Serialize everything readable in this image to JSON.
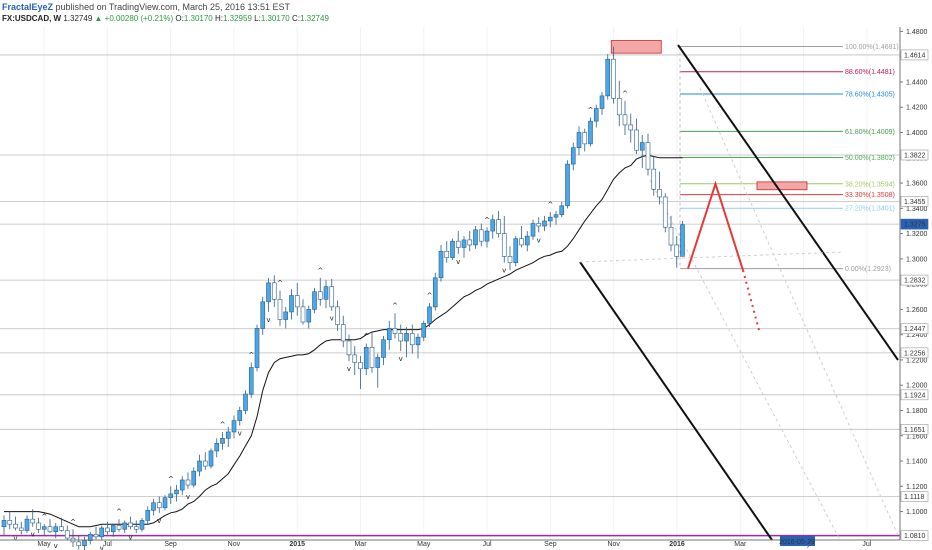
{
  "header": {
    "author": "FractalEyeZ",
    "published": "published on TradingView.com, March 25, 2016 13:51 EST"
  },
  "symbol_bar": {
    "symbol": "FX:USDCAD, W",
    "price": "1.32749",
    "change": "▲ +0.00280 (+0.21%)",
    "o_label": "O:",
    "o_value": "1.30170",
    "h_label": "H:",
    "h_value": "1.32959",
    "l_label": "L:",
    "l_value": "1.30170",
    "c_label": "C:",
    "c_value": "1.32749"
  },
  "colors": {
    "candle_up": "#4aa8e8",
    "candle_down": "#ffffff",
    "candle_border": "#2c5c8a",
    "ma_line": "#111111",
    "purple_line": "#9c27b0",
    "red_line": "#e53935",
    "box_fill": "#f4a7a7",
    "highlight_label": "#2962b5"
  },
  "chart_data": {
    "type": "candlestick",
    "title": "",
    "y_ticks": [
      "1.4800",
      "1.4600",
      "1.4400",
      "1.4200",
      "1.4000",
      "1.3800",
      "1.3600",
      "1.3400",
      "1.3200",
      "1.3000",
      "1.2800",
      "1.2600",
      "1.2400",
      "1.2200",
      "1.2000",
      "1.1800",
      "1.1600",
      "1.1400",
      "1.1200",
      "1.1000",
      "1.0800"
    ],
    "ylim": [
      1.0775,
      1.4835
    ],
    "x_ticks": [
      "May",
      "Jul",
      "Sep",
      "Nov",
      "2015",
      "Mar",
      "May",
      "Jul",
      "Sep",
      "Nov",
      "2016",
      "Mar",
      "May",
      "Jul"
    ],
    "x_highlight": "2016-05-29",
    "price_marks": [
      {
        "label": "1.4614",
        "value": 1.4614
      },
      {
        "label": "1.3822",
        "value": 1.3822
      },
      {
        "label": "1.3455",
        "value": 1.3455
      },
      {
        "label": "1.3275",
        "value": 1.3275,
        "highlight": true
      },
      {
        "label": "1.2832",
        "value": 1.2832
      },
      {
        "label": "1.2447",
        "value": 1.2447
      },
      {
        "label": "1.2256",
        "value": 1.2256
      },
      {
        "label": "1.1924",
        "value": 1.1924
      },
      {
        "label": "1.1651",
        "value": 1.1651
      },
      {
        "label": "1.1118",
        "value": 1.1118
      },
      {
        "label": "1.0810",
        "value": 1.081
      }
    ],
    "fib_levels": [
      {
        "label": "100.00%(1.4681)",
        "value": 1.4681,
        "color": "#9e9e9e"
      },
      {
        "label": "88.60%(1.4481)",
        "value": 1.4481,
        "color": "#c2185b"
      },
      {
        "label": "78.60%(1.4305)",
        "value": 1.4305,
        "color": "#1e88e5"
      },
      {
        "label": "61.80%(1.4009)",
        "value": 1.4009,
        "color": "#43a047"
      },
      {
        "label": "50.00%(1.3802)",
        "value": 1.3802,
        "color": "#4caf50"
      },
      {
        "label": "38.20%(1.3594)",
        "value": 1.3594,
        "color": "#9ccc65"
      },
      {
        "label": "33.30%(1.3508)",
        "value": 1.3508,
        "color": "#e53935"
      },
      {
        "label": "27.20%(1.3401)",
        "value": 1.3401,
        "color": "#90caf9"
      },
      {
        "label": "0.00%(1.2923)",
        "value": 1.2923,
        "color": "#9e9e9e"
      }
    ],
    "candles": [
      [
        1.088,
        1.097,
        1.081,
        1.093
      ],
      [
        1.093,
        1.1,
        1.086,
        1.09
      ],
      [
        1.09,
        1.096,
        1.085,
        1.087
      ],
      [
        1.087,
        1.092,
        1.082,
        1.085
      ],
      [
        1.085,
        1.097,
        1.083,
        1.094
      ],
      [
        1.094,
        1.102,
        1.088,
        1.091
      ],
      [
        1.091,
        1.095,
        1.083,
        1.086
      ],
      [
        1.086,
        1.09,
        1.081,
        1.088
      ],
      [
        1.088,
        1.094,
        1.083,
        1.084
      ],
      [
        1.084,
        1.091,
        1.079,
        1.088
      ],
      [
        1.088,
        1.095,
        1.084,
        1.085
      ],
      [
        1.085,
        1.089,
        1.077,
        1.079
      ],
      [
        1.079,
        1.086,
        1.072,
        1.076
      ],
      [
        1.076,
        1.081,
        1.07,
        1.073
      ],
      [
        1.073,
        1.08,
        1.069,
        1.077
      ],
      [
        1.077,
        1.084,
        1.074,
        1.082
      ],
      [
        1.082,
        1.088,
        1.078,
        1.08
      ],
      [
        1.08,
        1.089,
        1.077,
        1.087
      ],
      [
        1.087,
        1.092,
        1.082,
        1.084
      ],
      [
        1.084,
        1.09,
        1.08,
        1.089
      ],
      [
        1.089,
        1.094,
        1.084,
        1.086
      ],
      [
        1.086,
        1.093,
        1.083,
        1.091
      ],
      [
        1.091,
        1.096,
        1.086,
        1.088
      ],
      [
        1.088,
        1.093,
        1.083,
        1.086
      ],
      [
        1.086,
        1.095,
        1.084,
        1.093
      ],
      [
        1.093,
        1.104,
        1.09,
        1.101
      ],
      [
        1.101,
        1.11,
        1.097,
        1.107
      ],
      [
        1.107,
        1.112,
        1.099,
        1.103
      ],
      [
        1.103,
        1.113,
        1.101,
        1.111
      ],
      [
        1.111,
        1.12,
        1.106,
        1.114
      ],
      [
        1.114,
        1.121,
        1.108,
        1.117
      ],
      [
        1.117,
        1.128,
        1.113,
        1.125
      ],
      [
        1.125,
        1.131,
        1.118,
        1.121
      ],
      [
        1.121,
        1.135,
        1.119,
        1.132
      ],
      [
        1.132,
        1.145,
        1.128,
        1.14
      ],
      [
        1.14,
        1.147,
        1.133,
        1.136
      ],
      [
        1.136,
        1.15,
        1.134,
        1.148
      ],
      [
        1.148,
        1.158,
        1.143,
        1.154
      ],
      [
        1.154,
        1.163,
        1.149,
        1.158
      ],
      [
        1.158,
        1.167,
        1.151,
        1.163
      ],
      [
        1.163,
        1.176,
        1.158,
        1.172
      ],
      [
        1.172,
        1.183,
        1.168,
        1.18
      ],
      [
        1.18,
        1.196,
        1.177,
        1.193
      ],
      [
        1.193,
        1.218,
        1.19,
        1.214
      ],
      [
        1.214,
        1.248,
        1.211,
        1.245
      ],
      [
        1.245,
        1.27,
        1.24,
        1.266
      ],
      [
        1.266,
        1.285,
        1.258,
        1.281
      ],
      [
        1.281,
        1.287,
        1.262,
        1.268
      ],
      [
        1.268,
        1.275,
        1.247,
        1.252
      ],
      [
        1.252,
        1.262,
        1.245,
        1.258
      ],
      [
        1.258,
        1.276,
        1.252,
        1.271
      ],
      [
        1.271,
        1.281,
        1.255,
        1.262
      ],
      [
        1.262,
        1.268,
        1.248,
        1.25
      ],
      [
        1.25,
        1.263,
        1.245,
        1.26
      ],
      [
        1.26,
        1.277,
        1.257,
        1.274
      ],
      [
        1.274,
        1.285,
        1.263,
        1.268
      ],
      [
        1.268,
        1.283,
        1.261,
        1.278
      ],
      [
        1.278,
        1.284,
        1.259,
        1.262
      ],
      [
        1.262,
        1.267,
        1.243,
        1.248
      ],
      [
        1.248,
        1.255,
        1.23,
        1.235
      ],
      [
        1.235,
        1.24,
        1.219,
        1.224
      ],
      [
        1.224,
        1.231,
        1.208,
        1.218
      ],
      [
        1.218,
        1.223,
        1.197,
        1.213
      ],
      [
        1.213,
        1.233,
        1.208,
        1.23
      ],
      [
        1.23,
        1.242,
        1.21,
        1.214
      ],
      [
        1.214,
        1.225,
        1.198,
        1.222
      ],
      [
        1.222,
        1.239,
        1.216,
        1.236
      ],
      [
        1.236,
        1.251,
        1.228,
        1.245
      ],
      [
        1.245,
        1.257,
        1.237,
        1.241
      ],
      [
        1.241,
        1.248,
        1.227,
        1.235
      ],
      [
        1.235,
        1.246,
        1.222,
        1.241
      ],
      [
        1.241,
        1.248,
        1.225,
        1.232
      ],
      [
        1.232,
        1.241,
        1.221,
        1.238
      ],
      [
        1.238,
        1.251,
        1.235,
        1.249
      ],
      [
        1.249,
        1.265,
        1.246,
        1.262
      ],
      [
        1.262,
        1.289,
        1.259,
        1.285
      ],
      [
        1.285,
        1.311,
        1.282,
        1.306
      ],
      [
        1.306,
        1.314,
        1.297,
        1.301
      ],
      [
        1.301,
        1.316,
        1.299,
        1.314
      ],
      [
        1.314,
        1.322,
        1.304,
        1.309
      ],
      [
        1.309,
        1.318,
        1.301,
        1.315
      ],
      [
        1.315,
        1.322,
        1.306,
        1.311
      ],
      [
        1.311,
        1.326,
        1.308,
        1.323
      ],
      [
        1.323,
        1.328,
        1.31,
        1.314
      ],
      [
        1.314,
        1.325,
        1.309,
        1.322
      ],
      [
        1.322,
        1.335,
        1.316,
        1.331
      ],
      [
        1.331,
        1.338,
        1.317,
        1.32
      ],
      [
        1.32,
        1.334,
        1.297,
        1.302
      ],
      [
        1.302,
        1.31,
        1.291,
        1.297
      ],
      [
        1.297,
        1.318,
        1.294,
        1.316
      ],
      [
        1.316,
        1.326,
        1.309,
        1.311
      ],
      [
        1.311,
        1.322,
        1.306,
        1.318
      ],
      [
        1.318,
        1.331,
        1.315,
        1.328
      ],
      [
        1.328,
        1.333,
        1.321,
        1.326
      ],
      [
        1.326,
        1.334,
        1.322,
        1.33
      ],
      [
        1.33,
        1.337,
        1.325,
        1.333
      ],
      [
        1.333,
        1.338,
        1.327,
        1.335
      ],
      [
        1.335,
        1.345,
        1.333,
        1.342
      ],
      [
        1.342,
        1.378,
        1.34,
        1.375
      ],
      [
        1.375,
        1.392,
        1.37,
        1.388
      ],
      [
        1.388,
        1.405,
        1.382,
        1.4
      ],
      [
        1.4,
        1.403,
        1.385,
        1.391
      ],
      [
        1.391,
        1.412,
        1.389,
        1.409
      ],
      [
        1.409,
        1.422,
        1.404,
        1.419
      ],
      [
        1.419,
        1.432,
        1.414,
        1.429
      ],
      [
        1.429,
        1.462,
        1.426,
        1.458
      ],
      [
        1.458,
        1.468,
        1.423,
        1.427
      ],
      [
        1.427,
        1.441,
        1.405,
        1.414
      ],
      [
        1.414,
        1.425,
        1.398,
        1.406
      ],
      [
        1.406,
        1.415,
        1.392,
        1.402
      ],
      [
        1.402,
        1.411,
        1.383,
        1.386
      ],
      [
        1.386,
        1.398,
        1.372,
        1.392
      ],
      [
        1.392,
        1.399,
        1.366,
        1.371
      ],
      [
        1.371,
        1.381,
        1.35,
        1.355
      ],
      [
        1.355,
        1.369,
        1.343,
        1.349
      ],
      [
        1.349,
        1.352,
        1.321,
        1.325
      ],
      [
        1.325,
        1.334,
        1.306,
        1.311
      ],
      [
        1.311,
        1.318,
        1.293,
        1.302
      ],
      [
        1.302,
        1.33,
        1.302,
        1.327
      ]
    ],
    "ma": [
      1.1,
      1.1,
      1.1,
      1.1,
      1.1,
      1.1,
      1.1,
      1.099,
      1.098,
      1.096,
      1.094,
      1.092,
      1.09,
      1.088,
      1.088,
      1.088,
      1.089,
      1.09,
      1.09,
      1.09,
      1.09,
      1.09,
      1.09,
      1.09,
      1.09,
      1.09,
      1.091,
      1.094,
      1.097,
      1.099,
      1.1,
      1.102,
      1.106,
      1.108,
      1.112,
      1.117,
      1.12,
      1.122,
      1.126,
      1.13,
      1.137,
      1.144,
      1.152,
      1.16,
      1.175,
      1.196,
      1.21,
      1.218,
      1.221,
      1.222,
      1.223,
      1.224,
      1.224,
      1.225,
      1.228,
      1.232,
      1.235,
      1.236,
      1.236,
      1.236,
      1.236,
      1.236,
      1.237,
      1.24,
      1.242,
      1.243,
      1.244,
      1.244,
      1.244,
      1.244,
      1.244,
      1.244,
      1.244,
      1.245,
      1.248,
      1.252,
      1.255,
      1.258,
      1.262,
      1.266,
      1.27,
      1.272,
      1.275,
      1.277,
      1.28,
      1.282,
      1.284,
      1.286,
      1.288,
      1.291,
      1.293,
      1.295,
      1.297,
      1.3,
      1.302,
      1.303,
      1.305,
      1.306,
      1.31,
      1.316,
      1.323,
      1.33,
      1.336,
      1.342,
      1.347,
      1.355,
      1.363,
      1.368,
      1.372,
      1.374,
      1.379,
      1.381,
      1.382,
      1.381,
      1.38,
      1.38,
      1.38,
      1.38,
      1.38
    ],
    "high_marks": [
      7,
      12,
      20,
      29,
      38,
      43,
      48,
      55,
      63,
      68,
      74,
      84,
      95,
      102,
      108
    ],
    "low_marks": [
      2,
      5,
      9,
      13,
      17,
      22,
      27,
      32,
      41,
      46,
      57,
      60,
      69,
      79,
      87,
      93
    ],
    "projection_path": [
      [
        1.2923,
        1
      ],
      [
        1.3594,
        6
      ],
      [
        1.291,
        11
      ]
    ],
    "projection_dotted": [
      [
        1.291,
        11
      ],
      [
        1.242,
        14
      ]
    ]
  }
}
